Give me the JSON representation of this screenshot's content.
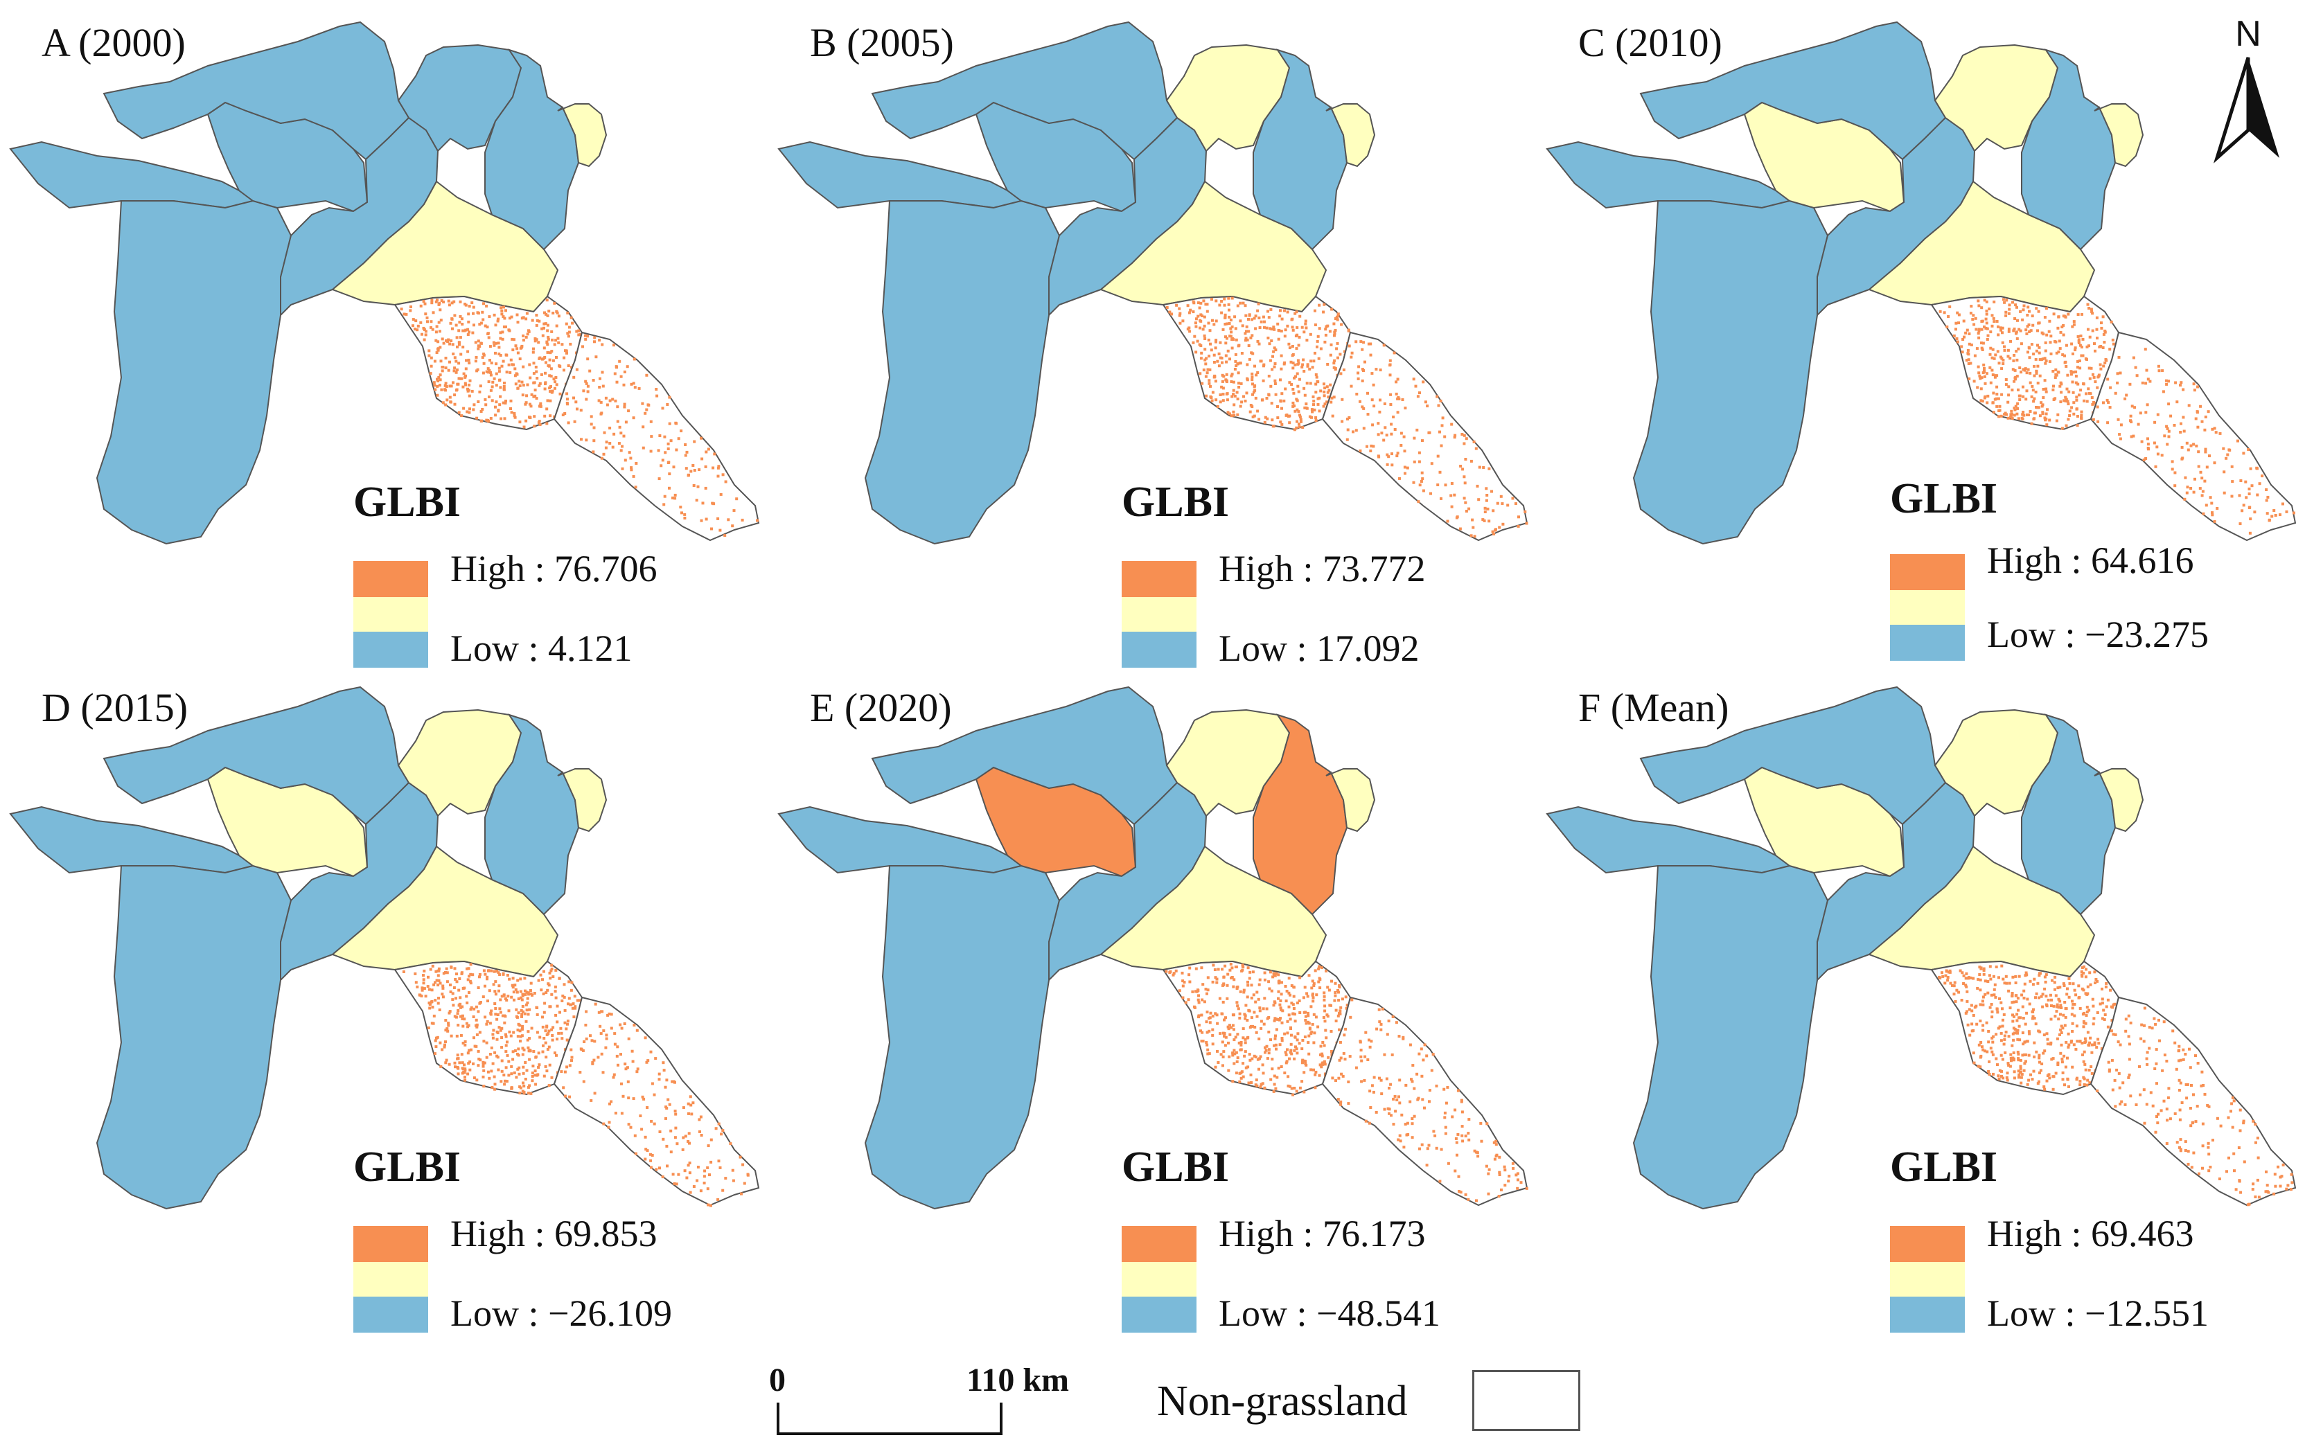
{
  "legend_title": "GLBI",
  "colors": {
    "high": "#f78f52",
    "mid": "#ffffbf",
    "low": "#7bbad9",
    "nongrassland": "#ffffff",
    "outline": "#555555"
  },
  "panels": [
    {
      "title": "A (2000)",
      "high": "High : 76.706",
      "low": "Low : 4.121",
      "regions": {
        "r1": "low",
        "r2": "low",
        "r3": "low",
        "r4": "low",
        "r5": "low",
        "r6": "mid",
        "r7": "low",
        "r8": "low",
        "r9": "mid",
        "r10": "high",
        "r11": "high"
      }
    },
    {
      "title": "B (2005)",
      "high": "High : 73.772",
      "low": "Low :  17.092",
      "regions": {
        "r1": "low",
        "r2": "low",
        "r3": "low",
        "r4": "low",
        "r5": "low",
        "r6": "mid",
        "r7": "mid",
        "r8": "low",
        "r9": "mid",
        "r10": "high",
        "r11": "high"
      }
    },
    {
      "title": "C (2010)",
      "high": "High : 64.616",
      "low": "Low : −23.275",
      "regions": {
        "r1": "low",
        "r2": "low",
        "r3": "mid",
        "r4": "low",
        "r5": "low",
        "r6": "mid",
        "r7": "mid",
        "r8": "low",
        "r9": "mid",
        "r10": "high",
        "r11": "high"
      }
    },
    {
      "title": "D (2015)",
      "high": "High : 69.853",
      "low": "Low : −26.109",
      "regions": {
        "r1": "low",
        "r2": "low",
        "r3": "mid",
        "r4": "low",
        "r5": "low",
        "r6": "mid",
        "r7": "mid",
        "r8": "low",
        "r9": "mid",
        "r10": "high",
        "r11": "high"
      }
    },
    {
      "title": "E (2020)",
      "high": "High : 76.173",
      "low": "Low : −48.541",
      "regions": {
        "r1": "low",
        "r2": "low",
        "r3": "high",
        "r4": "low",
        "r5": "low",
        "r6": "mid",
        "r7": "mid",
        "r8": "high",
        "r9": "mid",
        "r10": "high",
        "r11": "high"
      }
    },
    {
      "title": "F (Mean)",
      "high": "High : 69.463",
      "low": "Low : −12.551",
      "regions": {
        "r1": "low",
        "r2": "low",
        "r3": "mid",
        "r4": "low",
        "r5": "low",
        "r6": "mid",
        "r7": "mid",
        "r8": "low",
        "r9": "mid",
        "r10": "high",
        "r11": "high"
      }
    }
  ],
  "north_label": "N",
  "scale_bar": {
    "start": "0",
    "end": "110 km"
  },
  "nongrassland_label": "Non-grassland"
}
